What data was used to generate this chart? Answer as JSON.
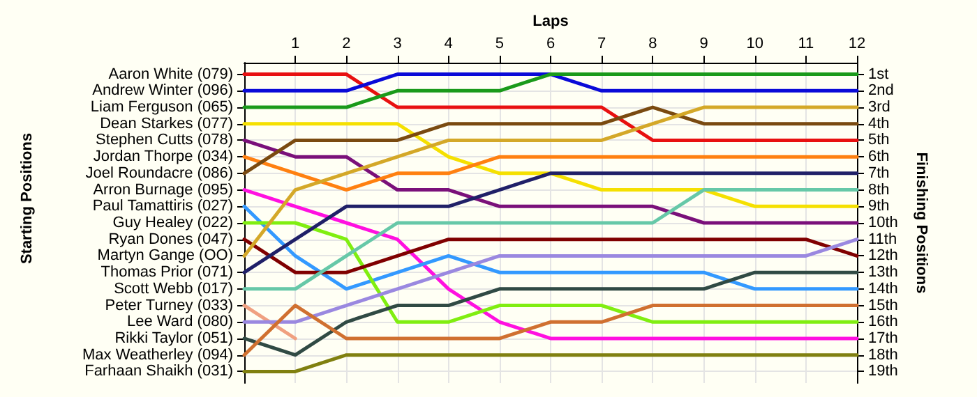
{
  "chart_data": {
    "type": "line",
    "xlabel": "Laps",
    "annotations": [
      "Starting Positions"
    ],
    "y2label": "Finishing Positions",
    "grid": true,
    "x": [
      0,
      1,
      2,
      3,
      4,
      5,
      6,
      7,
      8,
      9,
      10,
      11,
      12
    ],
    "xlim": [
      0,
      12
    ],
    "xticks": [
      1,
      2,
      3,
      4,
      5,
      6,
      7,
      8,
      9,
      10,
      11,
      12
    ],
    "y2lim": [
      19.7,
      0.3
    ],
    "y2ticks": [
      {
        "value": 1,
        "label": "1st"
      },
      {
        "value": 2,
        "label": "2nd"
      },
      {
        "value": 3,
        "label": "3rd"
      },
      {
        "value": 4,
        "label": "4th"
      },
      {
        "value": 5,
        "label": "5th"
      },
      {
        "value": 6,
        "label": "6th"
      },
      {
        "value": 7,
        "label": "7th"
      },
      {
        "value": 8,
        "label": "8th"
      },
      {
        "value": 9,
        "label": "9th"
      },
      {
        "value": 10,
        "label": "10th"
      },
      {
        "value": 11,
        "label": "11th"
      },
      {
        "value": 12,
        "label": "12th"
      },
      {
        "value": 13,
        "label": "13th"
      },
      {
        "value": 14,
        "label": "14th"
      },
      {
        "value": 15,
        "label": "15th"
      },
      {
        "value": 16,
        "label": "16th"
      },
      {
        "value": 17,
        "label": "17th"
      },
      {
        "value": 18,
        "label": "18th"
      },
      {
        "value": 19,
        "label": "19th"
      }
    ],
    "series": [
      {
        "name": "Aaron White (079)",
        "axis": "y2",
        "color": "#e81010",
        "values": [
          1,
          1,
          1,
          3,
          3,
          3,
          3,
          3,
          5,
          5,
          5,
          5,
          5
        ]
      },
      {
        "name": "Andrew Winter (096)",
        "axis": "y2",
        "color": "#0a0ad8",
        "values": [
          2,
          2,
          2,
          1,
          1,
          1,
          1,
          2,
          2,
          2,
          2,
          2,
          2
        ]
      },
      {
        "name": "Liam Ferguson (065)",
        "axis": "y2",
        "color": "#1a9a1a",
        "values": [
          3,
          3,
          3,
          2,
          2,
          2,
          1,
          1,
          1,
          1,
          1,
          1,
          1
        ]
      },
      {
        "name": "Dean Starkes (077)",
        "axis": "y2",
        "color": "#f5e000",
        "values": [
          4,
          4,
          4,
          4,
          6,
          7,
          7,
          8,
          8,
          8,
          9,
          9,
          9
        ]
      },
      {
        "name": "Stephen Cutts (078)",
        "axis": "y2",
        "color": "#7a107a",
        "values": [
          5,
          6,
          6,
          8,
          8,
          9,
          9,
          9,
          9,
          10,
          10,
          10,
          10
        ]
      },
      {
        "name": "Jordan Thorpe (034)",
        "axis": "y2",
        "color": "#ff8010",
        "values": [
          6,
          7,
          8,
          7,
          7,
          6,
          6,
          6,
          6,
          6,
          6,
          6,
          6
        ]
      },
      {
        "name": "Joel Roundacre (086)",
        "axis": "y2",
        "color": "#7a4a10",
        "values": [
          7,
          5,
          5,
          5,
          4,
          4,
          4,
          4,
          3,
          4,
          4,
          4,
          4
        ]
      },
      {
        "name": "Arron Burnage (095)",
        "axis": "y2",
        "color": "#ff10e0",
        "values": [
          8,
          9,
          10,
          11,
          14,
          16,
          17,
          17,
          17,
          17,
          17,
          17,
          17
        ]
      },
      {
        "name": "Paul Tamattiris (027)",
        "axis": "y2",
        "color": "#3399ff",
        "values": [
          9,
          12,
          14,
          13,
          12,
          13,
          13,
          13,
          13,
          13,
          14,
          14,
          14
        ]
      },
      {
        "name": "Guy Healey (022)",
        "axis": "y2",
        "color": "#80ee10",
        "values": [
          10,
          10,
          11,
          16,
          16,
          15,
          15,
          15,
          16,
          16,
          16,
          16,
          16
        ]
      },
      {
        "name": "Ryan Dones (047)",
        "axis": "y2",
        "color": "#800000",
        "values": [
          11,
          13,
          13,
          12,
          11,
          11,
          11,
          11,
          11,
          11,
          11,
          11,
          12
        ]
      },
      {
        "name": "Martyn Gange (OO)",
        "axis": "y2",
        "color": "#d4a828",
        "values": [
          12,
          8,
          7,
          6,
          5,
          5,
          5,
          5,
          4,
          3,
          3,
          3,
          3
        ]
      },
      {
        "name": "Thomas Prior (071)",
        "axis": "y2",
        "color": "#202068",
        "values": [
          13,
          11,
          9,
          9,
          9,
          8,
          7,
          7,
          7,
          7,
          7,
          7,
          7
        ]
      },
      {
        "name": "Scott Webb (017)",
        "axis": "y2",
        "color": "#66c8a8",
        "values": [
          14,
          14,
          12,
          10,
          10,
          10,
          10,
          10,
          10,
          8,
          8,
          8,
          8
        ]
      },
      {
        "name": "Peter Turney (033)",
        "axis": "y2",
        "color": "#f0a080",
        "values": [
          15,
          17,
          null,
          null,
          null,
          null,
          null,
          null,
          null,
          null,
          null,
          null,
          null
        ]
      },
      {
        "name": "Lee Ward (080)",
        "axis": "y2",
        "color": "#9a88e0",
        "values": [
          16,
          16,
          15,
          14,
          13,
          12,
          12,
          12,
          12,
          12,
          12,
          12,
          11
        ]
      },
      {
        "name": "Rikki Taylor (051)",
        "axis": "y2",
        "color": "#304a44",
        "values": [
          17,
          18,
          16,
          15,
          15,
          14,
          14,
          14,
          14,
          14,
          13,
          13,
          13
        ]
      },
      {
        "name": "Max Weatherley (094)",
        "axis": "y2",
        "color": "#d07030",
        "values": [
          18,
          15,
          17,
          17,
          17,
          17,
          16,
          16,
          15,
          15,
          15,
          15,
          15
        ]
      },
      {
        "name": "Farhaan Shaikh (031)",
        "axis": "y2",
        "color": "#808010",
        "values": [
          19,
          19,
          18,
          18,
          18,
          18,
          18,
          18,
          18,
          18,
          18,
          18,
          18
        ]
      }
    ]
  }
}
